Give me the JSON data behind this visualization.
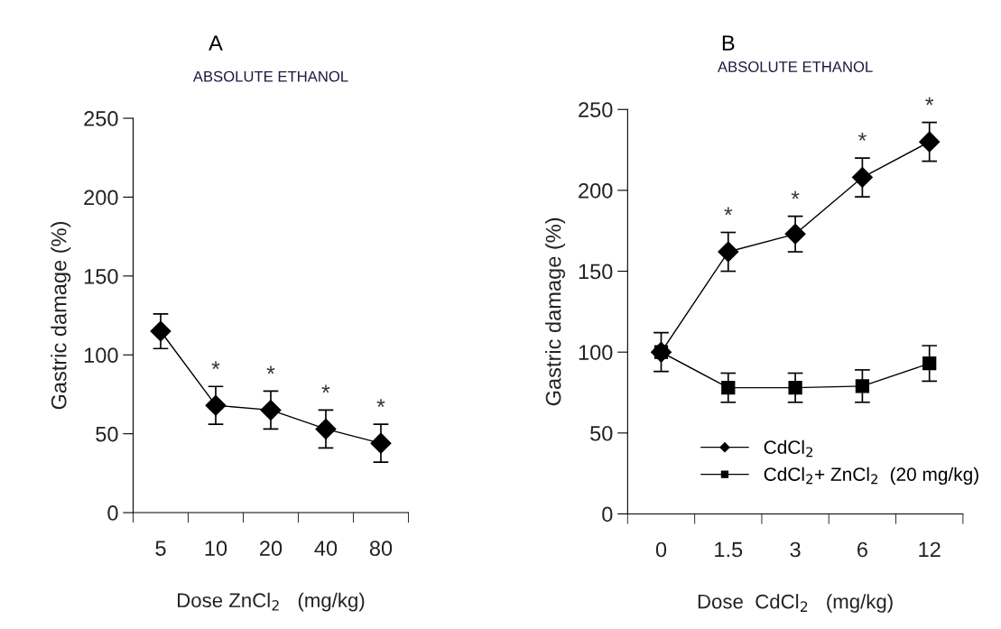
{
  "chart_data": [
    {
      "type": "line",
      "title": "A",
      "subtitle": "ABSOLUTE ETHANOL",
      "xlabel": "Dose ZnCl$_{2}$   (mg/kg)",
      "ylabel": "Gastric damage (%)",
      "categories": [
        "5",
        "10",
        "20",
        "40",
        "80"
      ],
      "series": [
        {
          "color": "#000000",
          "marker": "diamond",
          "values": [
            115,
            68,
            65,
            53,
            44
          ],
          "errors": [
            11,
            12,
            12,
            12,
            12
          ]
        }
      ],
      "ylim": [
        0,
        250
      ],
      "yticks": [
        0,
        50,
        100,
        150,
        200,
        250
      ],
      "grid": false,
      "legend": false,
      "line_style": "solid",
      "annotations": [
        {
          "text": "*",
          "x": "10",
          "y": 80
        },
        {
          "text": "*",
          "x": "20",
          "y": 77
        },
        {
          "text": "*",
          "x": "40",
          "y": 65
        },
        {
          "text": "*",
          "x": "80",
          "y": 56
        }
      ]
    },
    {
      "type": "line",
      "title": "B",
      "subtitle": "ABSOLUTE ETHANOL",
      "xlabel": "Dose  CdCl$_{2}$   (mg/kg)",
      "ylabel": "Gastric damage (%)",
      "categories": [
        "0",
        "1.5",
        "3",
        "6",
        "12"
      ],
      "series": [
        {
          "name": "CdCl$_{2}$",
          "color": "#000000",
          "marker": "diamond",
          "values": [
            100,
            162,
            173,
            208,
            230
          ],
          "errors": [
            12,
            12,
            11,
            12,
            12
          ]
        },
        {
          "name": "CdCl$_{2}$+ ZnCl$_{2}$  (20 mg/kg)",
          "color": "#000000",
          "marker": "square",
          "values": [
            100,
            78,
            78,
            79,
            93
          ],
          "errors": [
            null,
            9,
            9,
            10,
            11
          ]
        }
      ],
      "ylim": [
        0,
        250
      ],
      "yticks": [
        0,
        50,
        100,
        150,
        200,
        250
      ],
      "grid": false,
      "legend": "bottom right",
      "line_style": "solid",
      "annotations": [
        {
          "text": "*",
          "x": "1.5",
          "y": 174
        },
        {
          "text": "*",
          "x": "3",
          "y": 184
        },
        {
          "text": "*",
          "x": "6",
          "y": 220
        },
        {
          "text": "*",
          "x": "12",
          "y": 242
        }
      ]
    }
  ]
}
